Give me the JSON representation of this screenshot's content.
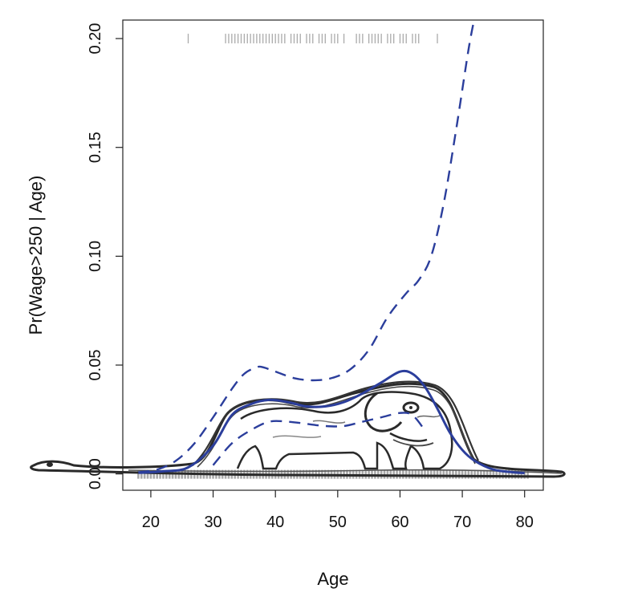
{
  "chart_data": {
    "type": "line",
    "title": "",
    "xlabel": "Age",
    "ylabel": "Pr(Wage>250 | Age)",
    "xlim": [
      15.5,
      83
    ],
    "ylim": [
      -0.0075,
      0.2085
    ],
    "x_ticks": [
      20,
      30,
      40,
      50,
      60,
      70,
      80
    ],
    "x_tick_labels": [
      "20",
      "30",
      "40",
      "50",
      "60",
      "70",
      "80"
    ],
    "y_ticks": [
      0.0,
      0.05,
      0.1,
      0.15,
      0.2
    ],
    "y_tick_labels": [
      "0.00",
      "0.05",
      "0.10",
      "0.15",
      "0.20"
    ],
    "grid": false,
    "colors": {
      "fit": "#2b3e9c",
      "rug": "#aaaaaa",
      "drawing": "#2a2a2a",
      "axis": "#222222"
    },
    "series": [
      {
        "style": "solid",
        "x": [
          18,
          22,
          26,
          30,
          33,
          36,
          39,
          42,
          45,
          48,
          51,
          54,
          57,
          60,
          62,
          64,
          66,
          68,
          70,
          72,
          75,
          78,
          80
        ],
        "y": [
          0.0005,
          0.0012,
          0.003,
          0.013,
          0.027,
          0.032,
          0.034,
          0.033,
          0.031,
          0.031,
          0.033,
          0.037,
          0.042,
          0.047,
          0.046,
          0.04,
          0.03,
          0.019,
          0.011,
          0.006,
          0.002,
          0.0008,
          0.0004
        ]
      },
      {
        "style": "dashed",
        "x": [
          18,
          21,
          24,
          27,
          30,
          33,
          35,
          37,
          38,
          40,
          43,
          46,
          49,
          52,
          55,
          58,
          61,
          63,
          65,
          67,
          69,
          71,
          72
        ],
        "y": [
          0.0008,
          0.002,
          0.006,
          0.014,
          0.026,
          0.039,
          0.046,
          0.049,
          0.049,
          0.047,
          0.044,
          0.043,
          0.044,
          0.048,
          0.057,
          0.072,
          0.083,
          0.089,
          0.1,
          0.124,
          0.158,
          0.195,
          0.21
        ]
      },
      {
        "style": "dashed",
        "x": [
          30,
          33,
          36,
          39,
          42,
          45,
          48,
          51,
          54,
          57,
          60,
          62,
          64
        ],
        "y": [
          0.004,
          0.014,
          0.02,
          0.024,
          0.024,
          0.023,
          0.022,
          0.022,
          0.024,
          0.026,
          0.028,
          0.027,
          0.02
        ]
      }
    ],
    "rug_top": [
      26,
      32,
      32.5,
      33,
      33.5,
      34,
      34.5,
      35,
      35.5,
      36,
      36.5,
      37,
      37.5,
      38,
      38.5,
      39,
      39.5,
      40,
      40.5,
      41,
      41.5,
      42.5,
      43,
      43.5,
      44,
      45,
      45.5,
      46,
      47,
      47.5,
      48,
      49,
      49.5,
      50,
      51,
      53,
      53.5,
      54,
      55,
      55.5,
      56,
      56.5,
      57,
      58,
      58.5,
      59,
      60,
      60.5,
      61,
      62,
      62.5,
      63,
      66
    ],
    "rug_bottom_range": [
      18,
      80
    ],
    "drawing": "elephant-inside-boa"
  }
}
